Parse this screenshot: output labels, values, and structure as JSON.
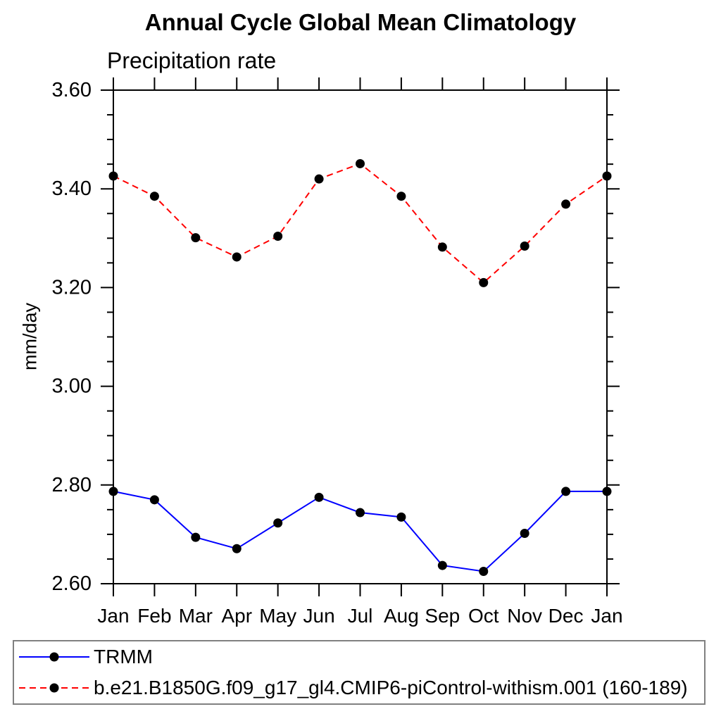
{
  "chart_data": {
    "type": "line",
    "title": "Annual Cycle Global Mean Climatology",
    "subtitle": "Precipitation rate",
    "ylabel": "mm/day",
    "xlabel": "",
    "categories": [
      "Jan",
      "Feb",
      "Mar",
      "Apr",
      "May",
      "Jun",
      "Jul",
      "Aug",
      "Sep",
      "Oct",
      "Nov",
      "Dec",
      "Jan"
    ],
    "ylim": [
      2.6,
      3.6
    ],
    "ytick_labels": [
      "2.60",
      "2.80",
      "3.00",
      "3.20",
      "3.40",
      "3.60"
    ],
    "ytick_step": 0.2,
    "yminor_step": 0.05,
    "grid": false,
    "legend_position": "bottom",
    "marker": "filled-circle",
    "marker_color": "#000000",
    "axis_color": "#000000",
    "legend_border_color": "#808080",
    "series": [
      {
        "name": "TRMM",
        "color": "#0000ff",
        "line_style": "solid",
        "values": [
          2.787,
          2.77,
          2.694,
          2.671,
          2.723,
          2.775,
          2.744,
          2.735,
          2.637,
          2.625,
          2.702,
          2.787,
          2.787
        ]
      },
      {
        "name": "b.e21.B1850G.f09_g17_gl4.CMIP6-piControl-withism.001 (160-189)",
        "color": "#ff0000",
        "line_style": "dashed",
        "values": [
          3.426,
          3.385,
          3.301,
          3.262,
          3.304,
          3.42,
          3.451,
          3.385,
          3.282,
          3.21,
          3.284,
          3.369,
          3.426
        ]
      }
    ]
  }
}
